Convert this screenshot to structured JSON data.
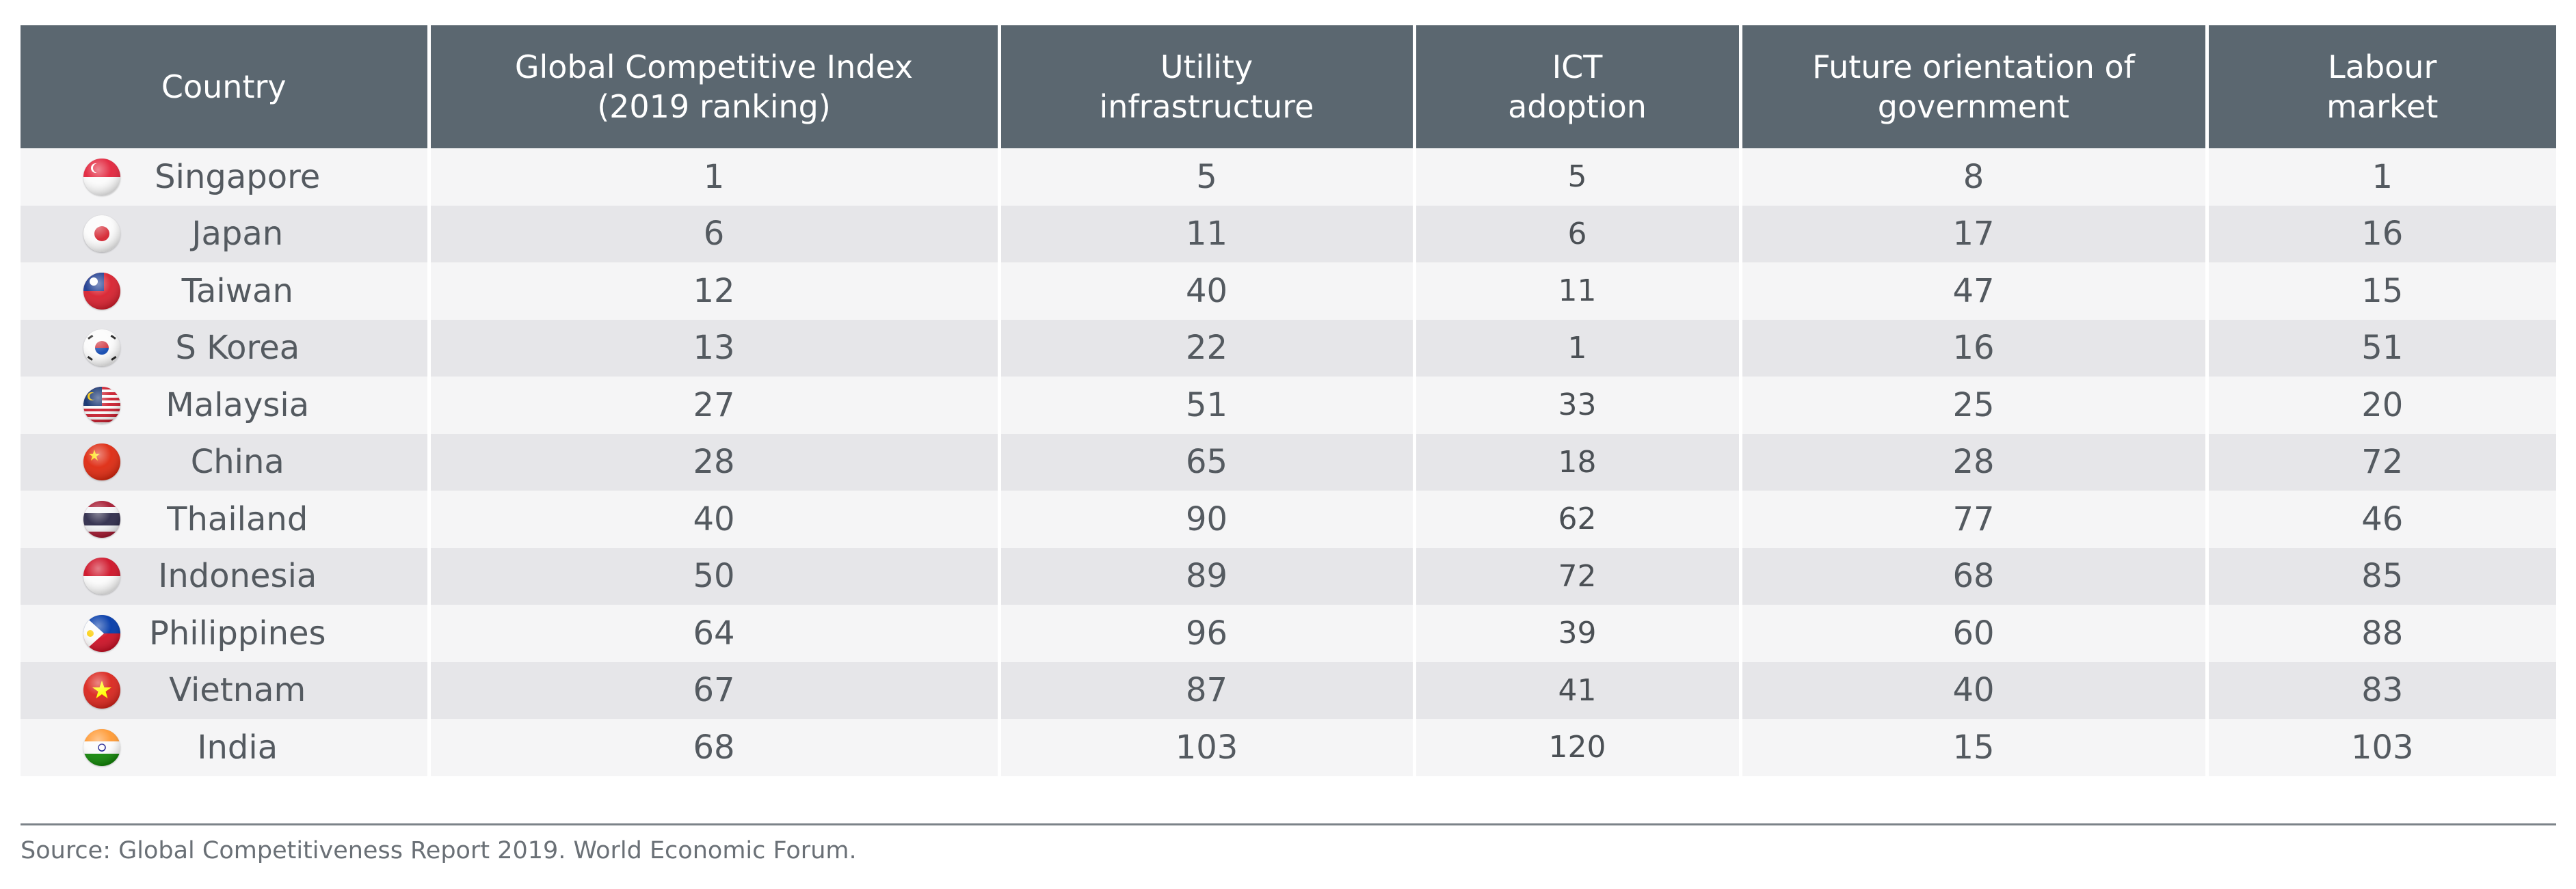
{
  "chart_data": {
    "type": "table",
    "columns": [
      "Country",
      "Global Competitive Index\n(2019 ranking)",
      "Utility\ninfrastructure",
      "ICT\nadoption",
      "Future orientation of\ngovernment",
      "Labour\nmarket"
    ],
    "rows": [
      {
        "country": "Singapore",
        "flag": "singapore-flag",
        "values": [
          1,
          5,
          5,
          8,
          1
        ]
      },
      {
        "country": "Japan",
        "flag": "japan-flag",
        "values": [
          6,
          11,
          6,
          17,
          16
        ]
      },
      {
        "country": "Taiwan",
        "flag": "taiwan-flag",
        "values": [
          12,
          40,
          11,
          47,
          15
        ]
      },
      {
        "country": "S Korea",
        "flag": "south-korea-flag",
        "values": [
          13,
          22,
          1,
          16,
          51
        ]
      },
      {
        "country": "Malaysia",
        "flag": "malaysia-flag",
        "values": [
          27,
          51,
          33,
          25,
          20
        ]
      },
      {
        "country": "China",
        "flag": "china-flag",
        "values": [
          28,
          65,
          18,
          28,
          72
        ]
      },
      {
        "country": "Thailand",
        "flag": "thailand-flag",
        "values": [
          40,
          90,
          62,
          77,
          46
        ]
      },
      {
        "country": "Indonesia",
        "flag": "indonesia-flag",
        "values": [
          50,
          89,
          72,
          68,
          85
        ]
      },
      {
        "country": "Philippines",
        "flag": "philippines-flag",
        "values": [
          64,
          96,
          39,
          60,
          88
        ]
      },
      {
        "country": "Vietnam",
        "flag": "vietnam-flag",
        "values": [
          67,
          87,
          41,
          40,
          83
        ]
      },
      {
        "country": "India",
        "flag": "india-flag",
        "values": [
          68,
          103,
          120,
          15,
          103
        ]
      }
    ],
    "source": "Source: Global Competitiveness Report 2019. World Economic Forum."
  },
  "colors": {
    "header_bg": "#5b6770",
    "row_light": "#f5f5f6",
    "row_dark": "#e6e6e9"
  }
}
